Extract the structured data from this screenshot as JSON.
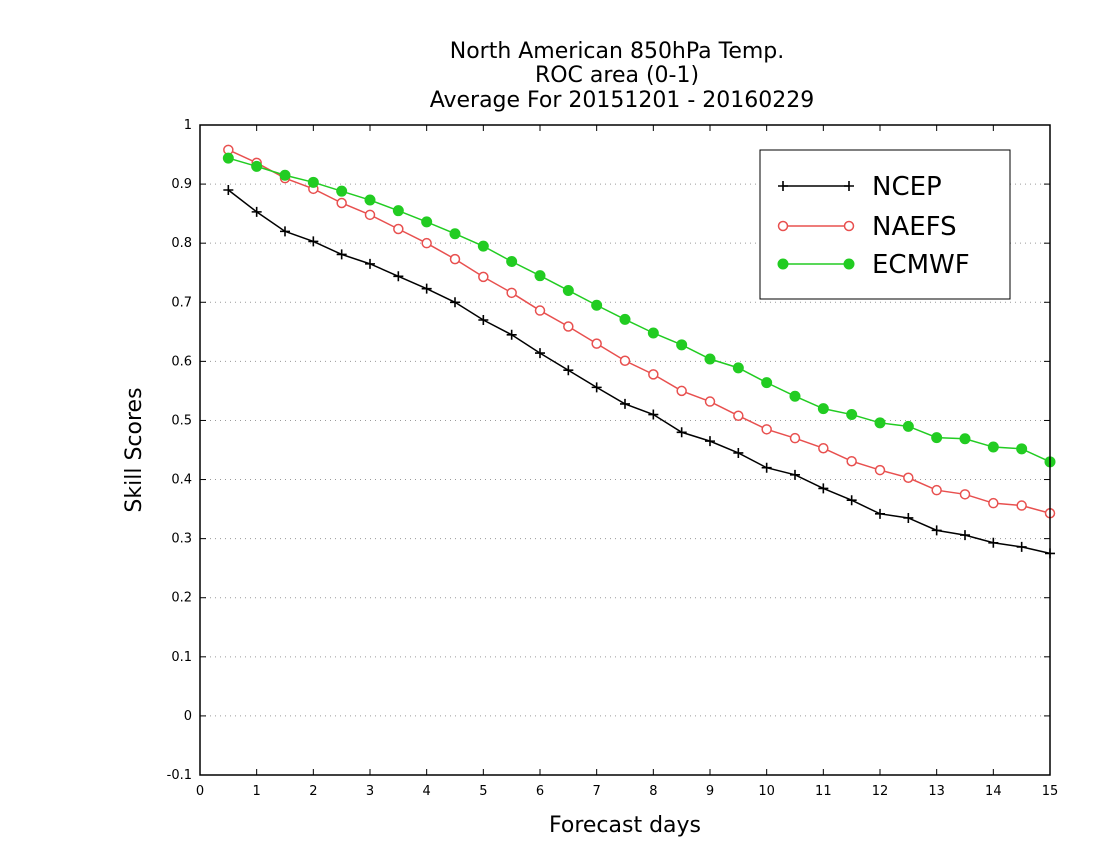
{
  "chart_data": {
    "type": "line",
    "title": [
      "North American 850hPa Temp.",
      "ROC area (0-1)",
      "Average For 20151201 - 20160229"
    ],
    "xlabel": "Forecast days",
    "ylabel": "Skill Scores",
    "xlim": [
      0,
      15
    ],
    "ylim": [
      -0.1,
      1
    ],
    "xticks": [
      0,
      1,
      2,
      3,
      4,
      5,
      6,
      7,
      8,
      9,
      10,
      11,
      12,
      13,
      14,
      15
    ],
    "yticks": [
      -0.1,
      0,
      0.1,
      0.2,
      0.3,
      0.4,
      0.5,
      0.6,
      0.7,
      0.8,
      0.9,
      1
    ],
    "ytick_labels": [
      "-0.1",
      "0",
      "0.1",
      "0.2",
      "0.3",
      "0.4",
      "0.5",
      "0.6",
      "0.7",
      "0.8",
      "0.9",
      "1"
    ],
    "grid": "horizontal dotted",
    "legend_position": "top-right",
    "x": [
      0.5,
      1,
      1.5,
      2,
      2.5,
      3,
      3.5,
      4,
      4.5,
      5,
      5.5,
      6,
      6.5,
      7,
      7.5,
      8,
      8.5,
      9,
      9.5,
      10,
      10.5,
      11,
      11.5,
      12,
      12.5,
      13,
      13.5,
      14,
      14.5,
      15
    ],
    "series": [
      {
        "name": "NCEP",
        "color": "#000000",
        "marker": "plus",
        "values": [
          0.89,
          0.853,
          0.82,
          0.803,
          0.781,
          0.765,
          0.744,
          0.723,
          0.7,
          0.67,
          0.645,
          0.614,
          0.585,
          0.556,
          0.528,
          0.51,
          0.48,
          0.465,
          0.445,
          0.42,
          0.408,
          0.385,
          0.365,
          0.342,
          0.335,
          0.314,
          0.306,
          0.293,
          0.286,
          0.275
        ]
      },
      {
        "name": "NAEFS",
        "color": "#e8504f",
        "marker": "open-circle",
        "values": [
          0.958,
          0.936,
          0.91,
          0.892,
          0.868,
          0.848,
          0.824,
          0.8,
          0.773,
          0.743,
          0.716,
          0.686,
          0.659,
          0.63,
          0.601,
          0.578,
          0.55,
          0.532,
          0.508,
          0.485,
          0.47,
          0.453,
          0.431,
          0.416,
          0.403,
          0.382,
          0.375,
          0.36,
          0.356,
          0.343
        ]
      },
      {
        "name": "ECMWF",
        "color": "#22cc22",
        "marker": "filled-circle",
        "values": [
          0.944,
          0.93,
          0.915,
          0.903,
          0.888,
          0.873,
          0.855,
          0.836,
          0.816,
          0.795,
          0.769,
          0.745,
          0.72,
          0.695,
          0.671,
          0.648,
          0.628,
          0.604,
          0.589,
          0.564,
          0.541,
          0.52,
          0.51,
          0.496,
          0.49,
          0.471,
          0.469,
          0.455,
          0.452,
          0.43
        ]
      }
    ]
  }
}
